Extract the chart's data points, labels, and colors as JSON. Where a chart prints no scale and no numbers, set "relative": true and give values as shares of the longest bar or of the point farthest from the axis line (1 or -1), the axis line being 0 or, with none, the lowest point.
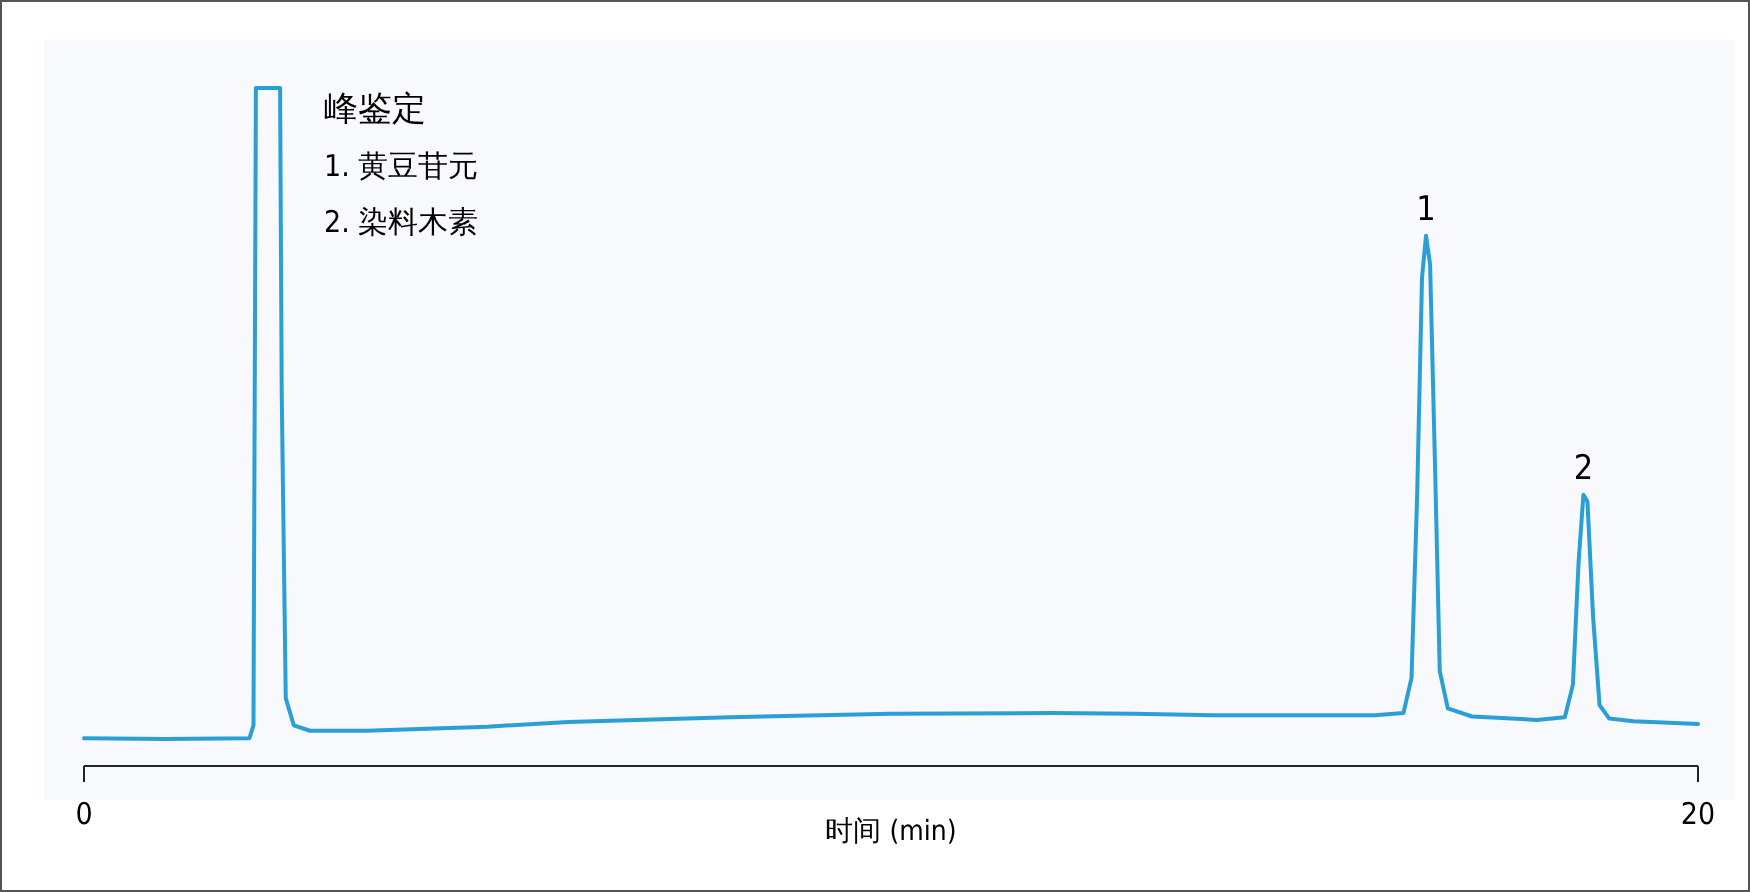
{
  "chart_data": {
    "type": "line",
    "relative": true,
    "xlabel": "时间 (min)",
    "xlim": [
      0,
      20
    ],
    "xticks": [
      0,
      20
    ],
    "x": [
      0,
      1,
      2.05,
      2.1,
      2.13,
      2.43,
      2.45,
      2.5,
      2.6,
      2.8,
      3.5,
      5,
      6,
      8,
      10,
      12,
      13,
      14,
      15,
      16,
      16.35,
      16.45,
      16.52,
      16.58,
      16.63,
      16.68,
      16.74,
      16.8,
      16.9,
      17.2,
      18,
      18.35,
      18.45,
      18.52,
      18.58,
      18.63,
      18.7,
      18.78,
      18.9,
      19.2,
      20
    ],
    "series": [
      {
        "color": "#2a9fd6",
        "values": [
          0.041,
          0.04,
          0.041,
          0.06,
          1,
          1,
          0.55,
          0.1,
          0.06,
          0.052,
          0.052,
          0.058,
          0.065,
          0.072,
          0.077,
          0.078,
          0.077,
          0.075,
          0.075,
          0.075,
          0.078,
          0.13,
          0.4,
          0.72,
          0.782,
          0.74,
          0.45,
          0.14,
          0.085,
          0.073,
          0.068,
          0.072,
          0.12,
          0.3,
          0.4,
          0.39,
          0.22,
          0.09,
          0.07,
          0.066,
          0.062
        ]
      }
    ],
    "annotations": [
      "峰鉴定",
      "1. 黄豆苷元",
      "2. 染料木素",
      {
        "text": "1",
        "x": 16.63,
        "y": 0.782
      },
      {
        "text": "2",
        "x": 18.58,
        "y": 0.4
      }
    ]
  }
}
